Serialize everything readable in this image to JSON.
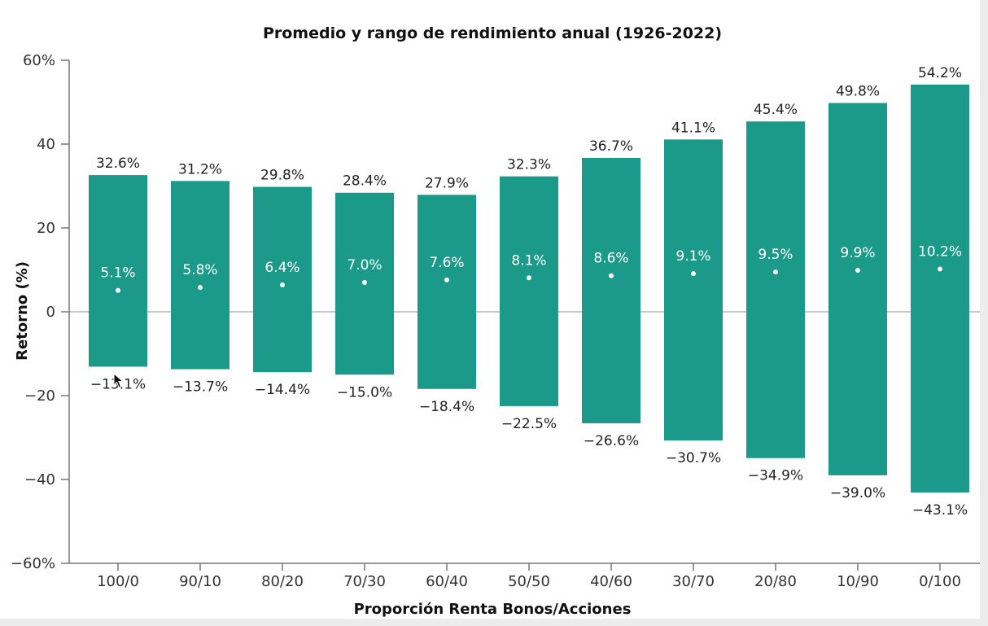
{
  "chart_data": {
    "type": "bar",
    "subtype": "range-floating",
    "title": "Promedio y rango de rendimiento anual (1926-2022)",
    "xlabel": "Proporción Renta Bonos/Acciones",
    "ylabel": "Retorno (%)",
    "ylim": [
      -60,
      60
    ],
    "yticks": [
      60,
      40,
      20,
      0,
      -20,
      -40,
      -60
    ],
    "ytick_labels": [
      "60%",
      "40",
      "20",
      "0",
      "−20",
      "−40",
      "−60%"
    ],
    "categories": [
      "100/0",
      "90/10",
      "80/20",
      "70/30",
      "60/40",
      "50/50",
      "40/60",
      "30/70",
      "20/80",
      "10/90",
      "0/100"
    ],
    "series": [
      {
        "values": [
          32.6,
          31.2,
          29.8,
          28.4,
          27.9,
          32.3,
          36.7,
          41.1,
          45.4,
          49.8,
          54.2
        ],
        "labels": [
          "32.6%",
          "31.2%",
          "29.8%",
          "28.4%",
          "27.9%",
          "32.3%",
          "36.7%",
          "41.1%",
          "45.4%",
          "49.8%",
          "54.2%"
        ]
      },
      {
        "values": [
          -13.1,
          -13.7,
          -14.4,
          -15.0,
          -18.4,
          -22.5,
          -26.6,
          -30.7,
          -34.9,
          -39.0,
          -43.1
        ],
        "labels": [
          "−13.1%",
          "−13.7%",
          "−14.4%",
          "−15.0%",
          "−18.4%",
          "−22.5%",
          "−26.6%",
          "−30.7%",
          "−34.9%",
          "−39.0%",
          "−43.1%"
        ]
      },
      {
        "values": [
          5.1,
          5.8,
          6.4,
          7.0,
          7.6,
          8.1,
          8.6,
          9.1,
          9.5,
          9.9,
          10.2
        ],
        "labels": [
          "5.1%",
          "5.8%",
          "6.4%",
          "7.0%",
          "7.6%",
          "8.1%",
          "8.6%",
          "9.1%",
          "9.5%",
          "9.9%",
          "10.2%"
        ]
      }
    ],
    "grid": false,
    "zero_line": true,
    "colors": {
      "bar": "#1b9a8a",
      "axis": "#777777",
      "zero_line": "#b5b5b5",
      "mean_dot": "#ffffff"
    }
  }
}
